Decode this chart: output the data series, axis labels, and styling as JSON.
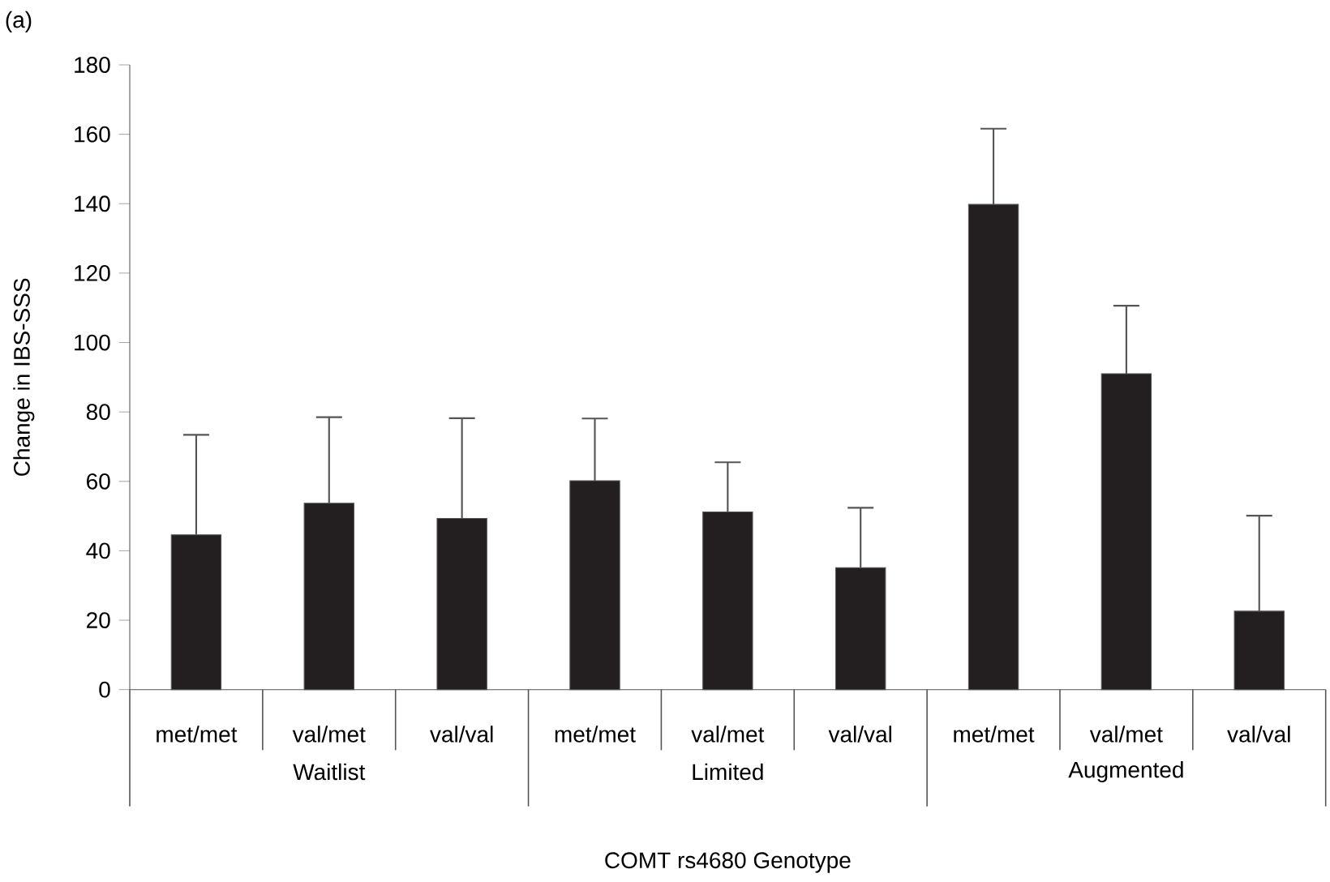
{
  "chart_data": {
    "type": "bar",
    "title": "(a)",
    "ylabel": "Change in IBS-SSS",
    "xlabel": "COMT rs4680 Genotype",
    "categories": [
      "met/met",
      "val/met",
      "val/val",
      "met/met",
      "val/met",
      "val/val",
      "met/met",
      "val/met",
      "val/val"
    ],
    "values": [
      44.6,
      53.7,
      49.3,
      60.2,
      51.2,
      35.1,
      139.8,
      91.0,
      22.6
    ],
    "errors": [
      [
        44.6,
        73.4
      ],
      [
        53.7,
        78.5
      ],
      [
        49.3,
        78.2
      ],
      [
        60.2,
        78.1
      ],
      [
        51.2,
        65.5
      ],
      [
        35.1,
        52.4
      ],
      [
        139.8,
        161.6
      ],
      [
        91.0,
        110.6
      ],
      [
        22.6,
        50.1
      ]
    ],
    "color": "#231f20",
    "ylim": [
      0,
      180
    ],
    "yticks": [
      0,
      20,
      40,
      60,
      80,
      100,
      120,
      140,
      160,
      180
    ],
    "annotations": [
      "Waitlist",
      "Limited",
      "Augmented"
    ],
    "grid": false
  }
}
